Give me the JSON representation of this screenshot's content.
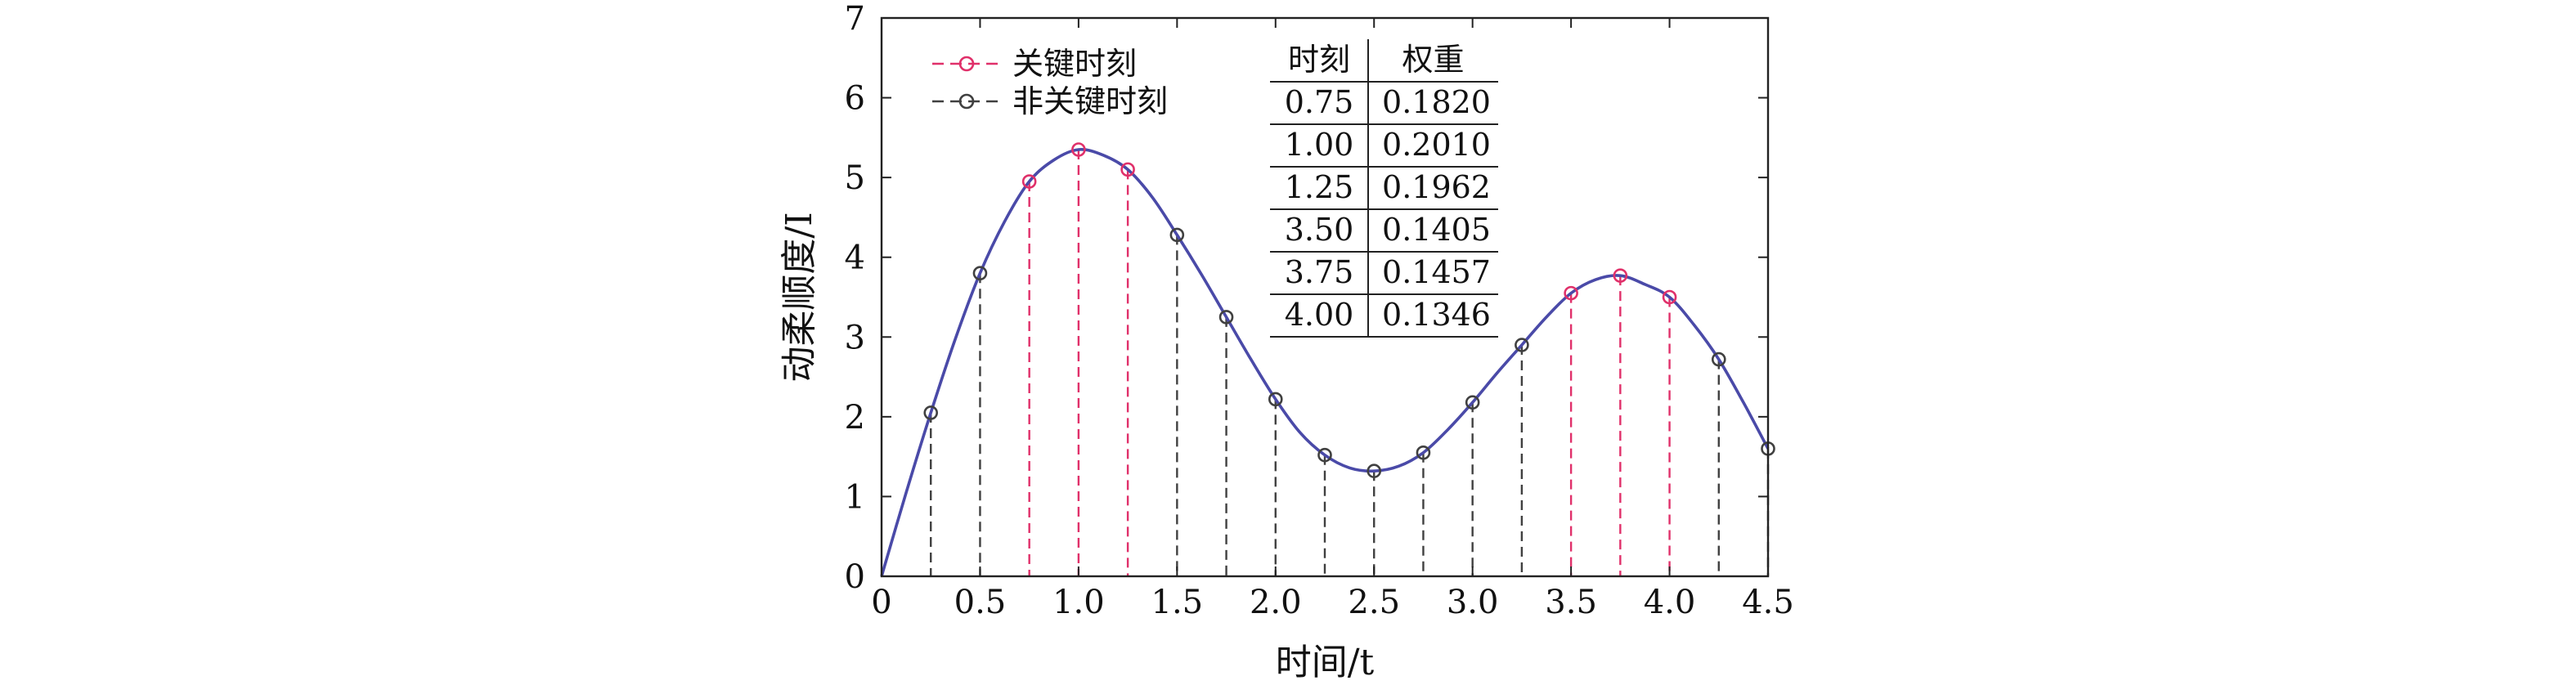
{
  "chart_data": {
    "type": "line",
    "xlabel": "时间/t",
    "ylabel": "动柔顺度/I",
    "xlim": [
      0,
      4.5
    ],
    "ylim": [
      0,
      7
    ],
    "x_ticks": [
      "0",
      "0.5",
      "1.0",
      "1.5",
      "2.0",
      "2.5",
      "3.0",
      "3.5",
      "4.0",
      "4.5"
    ],
    "x_tick_values": [
      0,
      0.5,
      1.0,
      1.5,
      2.0,
      2.5,
      3.0,
      3.5,
      4.0,
      4.5
    ],
    "y_ticks": [
      "0",
      "1",
      "2",
      "3",
      "4",
      "5",
      "6",
      "7"
    ],
    "y_tick_values": [
      0,
      1,
      2,
      3,
      4,
      5,
      6,
      7
    ],
    "grid": false,
    "legend_position": "top-left",
    "curve": {
      "color": "#4a4aa8",
      "x": [
        0,
        0.125,
        0.25,
        0.375,
        0.5,
        0.625,
        0.75,
        0.875,
        1.0,
        1.125,
        1.25,
        1.375,
        1.5,
        1.625,
        1.75,
        1.875,
        2.0,
        2.125,
        2.25,
        2.375,
        2.5,
        2.625,
        2.75,
        2.875,
        3.0,
        3.125,
        3.25,
        3.375,
        3.5,
        3.625,
        3.75,
        3.875,
        4.0,
        4.125,
        4.25,
        4.375,
        4.5
      ],
      "y": [
        0,
        1.05,
        2.05,
        2.98,
        3.8,
        4.45,
        4.95,
        5.22,
        5.35,
        5.28,
        5.1,
        4.75,
        4.28,
        3.78,
        3.25,
        2.72,
        2.22,
        1.8,
        1.52,
        1.36,
        1.32,
        1.38,
        1.55,
        1.84,
        2.18,
        2.55,
        2.9,
        3.25,
        3.55,
        3.72,
        3.77,
        3.66,
        3.5,
        3.15,
        2.72,
        2.18,
        1.6
      ]
    },
    "series": [
      {
        "name": "关键时刻",
        "color": "#e0306a",
        "x": [
          0.75,
          1.0,
          1.25,
          3.5,
          3.75,
          4.0
        ],
        "y": [
          4.95,
          5.35,
          5.1,
          3.55,
          3.77,
          3.5
        ]
      },
      {
        "name": "非关键时刻",
        "color": "#404040",
        "x": [
          0.25,
          0.5,
          1.5,
          1.75,
          2.0,
          2.25,
          2.5,
          2.75,
          3.0,
          3.25,
          4.25,
          4.5
        ],
        "y": [
          2.05,
          3.8,
          4.28,
          3.25,
          2.22,
          1.52,
          1.32,
          1.55,
          2.18,
          2.9,
          2.72,
          1.6
        ]
      }
    ],
    "table": {
      "headers": [
        "时刻",
        "权重"
      ],
      "rows": [
        [
          "0.75",
          "0.1820"
        ],
        [
          "1.00",
          "0.2010"
        ],
        [
          "1.25",
          "0.1962"
        ],
        [
          "3.50",
          "0.1405"
        ],
        [
          "3.75",
          "0.1457"
        ],
        [
          "4.00",
          "0.1346"
        ]
      ]
    }
  }
}
